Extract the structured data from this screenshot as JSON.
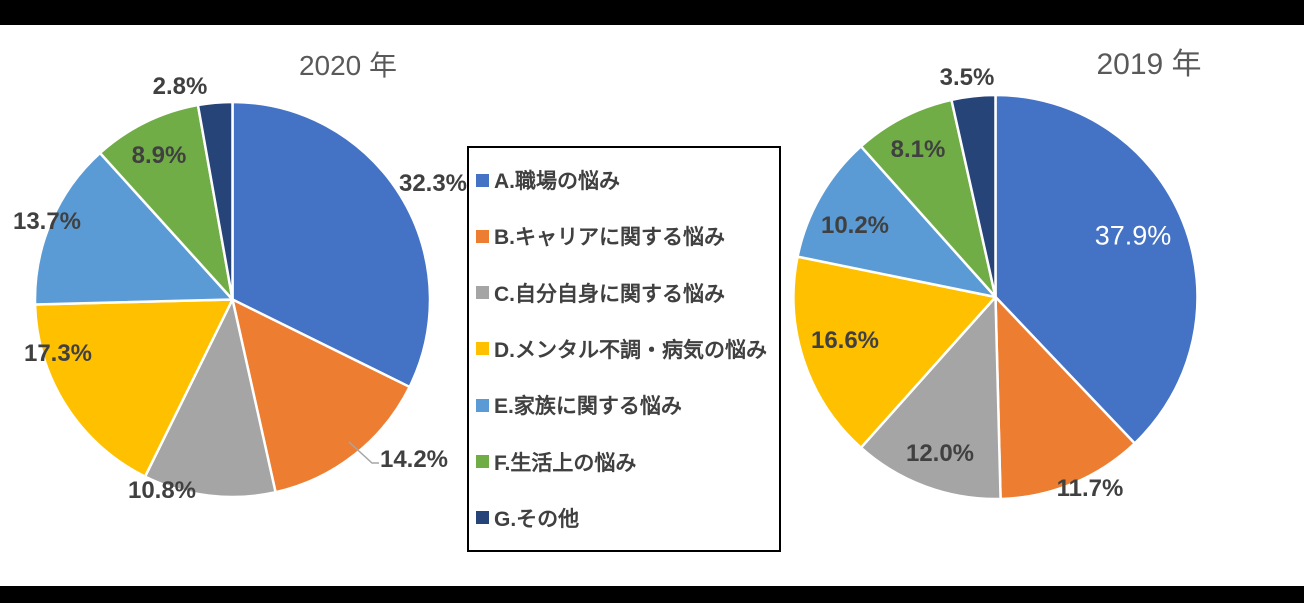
{
  "figure": {
    "background_color": "#FFFFFF",
    "top_bottom_bar_color": "#000000"
  },
  "style": {
    "title_color": "#595959",
    "label_color": "#404040",
    "label_on_slice_color": "#FFFFFF",
    "slice_border_color": "#FFFFFF",
    "leader_line_color": "#A6A6A6",
    "legend_border_color": "#000000"
  },
  "legend": {
    "items": [
      {
        "label": "A.職場の悩み",
        "color": "#4472C4"
      },
      {
        "label": "B.キャリアに関する悩み",
        "color": "#ED7D31"
      },
      {
        "label": "C.自分自身に関する悩み",
        "color": "#A5A5A5"
      },
      {
        "label": "D.メンタル不調・病気の悩み",
        "color": "#FFC000"
      },
      {
        "label": "E.家族に関する悩み",
        "color": "#5B9BD5"
      },
      {
        "label": "F.生活上の悩み",
        "color": "#70AD47"
      },
      {
        "label": "G.その他",
        "color": "#264478"
      }
    ]
  },
  "chart_data": [
    {
      "type": "pie",
      "title": "2020 年",
      "categories": [
        "A.職場の悩み",
        "B.キャリアに関する悩み",
        "C.自分自身に関する悩み",
        "D.メンタル不調・病気の悩み",
        "E.家族に関する悩み",
        "F.生活上の悩み",
        "G.その他"
      ],
      "values": [
        32.3,
        14.2,
        10.8,
        17.3,
        13.7,
        8.9,
        2.8
      ],
      "data_labels": [
        "32.3%",
        "14.2%",
        "10.8%",
        "17.3%",
        "13.7%",
        "8.9%",
        "2.8%"
      ],
      "colors": [
        "#4472C4",
        "#ED7D31",
        "#A5A5A5",
        "#FFC000",
        "#5B9BD5",
        "#70AD47",
        "#264478"
      ],
      "start_angle_deg": 0,
      "direction": "clockwise",
      "legend_position": "right-of-chart (shared, boxed)"
    },
    {
      "type": "pie",
      "title": "2019 年",
      "categories": [
        "A.職場の悩み",
        "B.キャリアに関する悩み",
        "C.自分自身に関する悩み",
        "D.メンタル不調・病気の悩み",
        "E.家族に関する悩み",
        "F.生活上の悩み",
        "G.その他"
      ],
      "values": [
        37.9,
        11.7,
        12.0,
        16.6,
        10.2,
        8.1,
        3.5
      ],
      "data_labels": [
        "37.9%",
        "11.7%",
        "12.0%",
        "16.6%",
        "10.2%",
        "8.1%",
        "3.5%"
      ],
      "colors": [
        "#4472C4",
        "#ED7D31",
        "#A5A5A5",
        "#FFC000",
        "#5B9BD5",
        "#70AD47",
        "#264478"
      ],
      "start_angle_deg": 0,
      "direction": "clockwise",
      "legend_position": "left-of-chart (shared, boxed)"
    }
  ]
}
